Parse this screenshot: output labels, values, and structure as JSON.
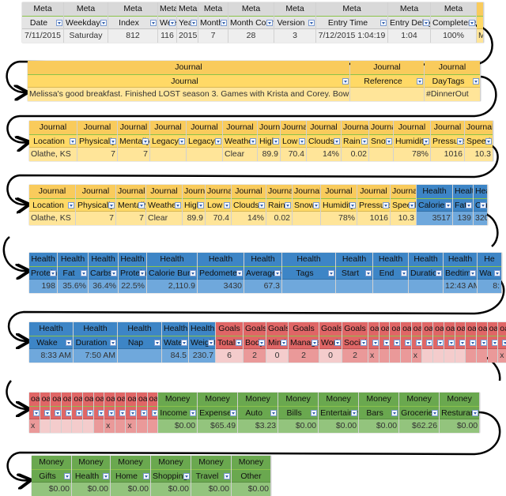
{
  "colors": {
    "meta": "#d9d9d9",
    "journal": "#ffd966",
    "health": "#3d85c6",
    "goals": "#e06666",
    "money": "#6aa84f"
  },
  "strips": [
    {
      "columns": [
        {
          "cat": "meta",
          "group": "Meta",
          "header": "Date",
          "value": "7/11/2015"
        },
        {
          "cat": "meta",
          "group": "Meta",
          "header": "Weekday",
          "value": "Saturday"
        },
        {
          "cat": "meta",
          "group": "Meta",
          "header": "Index",
          "value": "812"
        },
        {
          "cat": "meta",
          "group": "Meta",
          "header": "Week",
          "value": "116"
        },
        {
          "cat": "meta",
          "group": "Meta",
          "header": "Year",
          "value": "2015"
        },
        {
          "cat": "meta",
          "group": "Meta",
          "header": "Month",
          "value": "7"
        },
        {
          "cat": "meta",
          "group": "Meta",
          "header": "Month Count",
          "value": "28"
        },
        {
          "cat": "meta",
          "group": "Meta",
          "header": "Version",
          "value": "3"
        },
        {
          "cat": "meta",
          "group": "Meta",
          "header": "Entry Time",
          "value": "7/12/2015 1:04:19"
        },
        {
          "cat": "meta",
          "group": "Meta",
          "header": "Entry Delay",
          "value": "1:04"
        },
        {
          "cat": "meta",
          "group": "Meta",
          "header": "Completeness",
          "value": "100%"
        },
        {
          "cat": "journal",
          "group": "",
          "header": "",
          "value": "M"
        }
      ]
    },
    {
      "columns": [
        {
          "cat": "journal",
          "group": "Journal",
          "header": "Journal",
          "value": "Melissa's good breakfast. Finished LOST season 3. Games with Krista and Corey. Bowling with them a"
        },
        {
          "cat": "journal",
          "group": "Journal",
          "header": "Reference",
          "value": ""
        },
        {
          "cat": "journal",
          "group": "Journal",
          "header": "DayTags",
          "value": "#DinnerOut"
        }
      ]
    },
    {
      "columns": [
        {
          "cat": "journal",
          "group": "Journal",
          "header": "Location",
          "value": "Olathe, KS"
        },
        {
          "cat": "journal",
          "group": "Journal",
          "header": "Physically",
          "value": "7"
        },
        {
          "cat": "journal",
          "group": "Journal",
          "header": "Mentally",
          "value": "7"
        },
        {
          "cat": "journal",
          "group": "Journal",
          "header": "LegacyP",
          "value": ""
        },
        {
          "cat": "journal",
          "group": "Journal",
          "header": "LegacyM",
          "value": ""
        },
        {
          "cat": "journal",
          "group": "Journal",
          "header": "Weather",
          "value": "Clear"
        },
        {
          "cat": "journal",
          "group": "Journal",
          "header": "High",
          "value": "89.9"
        },
        {
          "cat": "journal",
          "group": "Journal",
          "header": "Low",
          "value": "70.4"
        },
        {
          "cat": "journal",
          "group": "Journal",
          "header": "Clouds",
          "value": "14%"
        },
        {
          "cat": "journal",
          "group": "Journal",
          "header": "Rain",
          "value": "0.02"
        },
        {
          "cat": "journal",
          "group": "Journal",
          "header": "Snow",
          "value": ""
        },
        {
          "cat": "journal",
          "group": "Journal",
          "header": "Humidity",
          "value": "78%"
        },
        {
          "cat": "journal",
          "group": "Journal",
          "header": "Pressure",
          "value": "1016"
        },
        {
          "cat": "journal",
          "group": "Journal",
          "header": "Speed",
          "value": "10.3"
        }
      ]
    },
    {
      "columns": [
        {
          "cat": "journal",
          "group": "Journal",
          "header": "Location",
          "value": "Olathe, KS"
        },
        {
          "cat": "journal",
          "group": "Journal",
          "header": "Physically",
          "value": "7"
        },
        {
          "cat": "journal",
          "group": "Journal",
          "header": "Mentally",
          "value": "7"
        },
        {
          "cat": "journal",
          "group": "Journal",
          "header": "Weather",
          "value": "Clear"
        },
        {
          "cat": "journal",
          "group": "Journal",
          "header": "High",
          "value": "89.9"
        },
        {
          "cat": "journal",
          "group": "Journal",
          "header": "Low",
          "value": "70.4"
        },
        {
          "cat": "journal",
          "group": "Journal",
          "header": "Clouds",
          "value": "14%"
        },
        {
          "cat": "journal",
          "group": "Journal",
          "header": "Rain",
          "value": "0.02"
        },
        {
          "cat": "journal",
          "group": "Journal",
          "header": "Snow",
          "value": ""
        },
        {
          "cat": "journal",
          "group": "Journal",
          "header": "Humidity",
          "value": "78%"
        },
        {
          "cat": "journal",
          "group": "Journal",
          "header": "Pressure",
          "value": "1016"
        },
        {
          "cat": "journal",
          "group": "Journal",
          "header": "Speed",
          "value": "10.3"
        },
        {
          "cat": "health",
          "group": "Health",
          "header": "Calories",
          "value": "3517"
        },
        {
          "cat": "health",
          "group": "Health",
          "header": "Fats",
          "value": "139"
        },
        {
          "cat": "health",
          "group": "Health",
          "header": "Carbs",
          "value": "320"
        }
      ]
    },
    {
      "columns": [
        {
          "cat": "health",
          "group": "Health",
          "header": "Protein",
          "value": "198"
        },
        {
          "cat": "health",
          "group": "Health",
          "header": "Fat",
          "value": "35.6%"
        },
        {
          "cat": "health",
          "group": "Health",
          "header": "Carbs",
          "value": "36.4%"
        },
        {
          "cat": "health",
          "group": "Health",
          "header": "Protein",
          "value": "22.5%"
        },
        {
          "cat": "health",
          "group": "Health",
          "header": "Calorie Burn",
          "value": "2,110.9"
        },
        {
          "cat": "health",
          "group": "Health",
          "header": "Pedometer",
          "value": "3430"
        },
        {
          "cat": "health",
          "group": "Health",
          "header": "Average HR",
          "value": "67.3"
        },
        {
          "cat": "health",
          "group": "Health",
          "header": "Tags",
          "value": ""
        },
        {
          "cat": "health",
          "group": "Health",
          "header": "Start",
          "value": ""
        },
        {
          "cat": "health",
          "group": "Health",
          "header": "End",
          "value": ""
        },
        {
          "cat": "health",
          "group": "Health",
          "header": "Duration",
          "value": ""
        },
        {
          "cat": "health",
          "group": "Health",
          "header": "Bedtime",
          "value": "12:43 AM"
        },
        {
          "cat": "health",
          "group": "He",
          "header": "Wa",
          "value": "8:"
        }
      ]
    },
    {
      "columns": [
        {
          "cat": "health",
          "group": "Health",
          "header": "Wake",
          "value": "8:33 AM"
        },
        {
          "cat": "health",
          "group": "Health",
          "header": "Duration",
          "value": "7:50 AM"
        },
        {
          "cat": "health",
          "group": "Health",
          "header": "Nap",
          "value": ""
        },
        {
          "cat": "health",
          "group": "Health",
          "header": "Water",
          "value": "84.5"
        },
        {
          "cat": "health",
          "group": "Health",
          "header": "Weight",
          "value": "230.7"
        },
        {
          "cat": "goals",
          "group": "Goals",
          "header": "Total",
          "value": "6"
        },
        {
          "cat": "goals",
          "group": "Goals",
          "header": "Body",
          "value": "2"
        },
        {
          "cat": "goals",
          "group": "Goals",
          "header": "Mind",
          "value": "0"
        },
        {
          "cat": "goals",
          "group": "Goals",
          "header": "Manage",
          "value": "2"
        },
        {
          "cat": "goals",
          "group": "Goals",
          "header": "Work",
          "value": "0"
        },
        {
          "cat": "goals",
          "group": "Goals",
          "header": "Social",
          "value": "2"
        },
        {
          "cat": "goals",
          "group": "oa",
          "header": "",
          "value": "x"
        },
        {
          "cat": "goals",
          "group": "oa",
          "header": "",
          "value": ""
        },
        {
          "cat": "goals",
          "group": "oa",
          "header": "",
          "value": ""
        },
        {
          "cat": "goals",
          "group": "oa",
          "header": "",
          "value": ""
        },
        {
          "cat": "goals",
          "group": "oa",
          "header": "",
          "value": "x"
        },
        {
          "cat": "goals",
          "group": "oa",
          "header": "",
          "value": ""
        },
        {
          "cat": "goals",
          "group": "oa",
          "header": "",
          "value": ""
        },
        {
          "cat": "goals",
          "group": "oa",
          "header": "",
          "value": ""
        },
        {
          "cat": "goals",
          "group": "oa",
          "header": "",
          "value": ""
        },
        {
          "cat": "goals",
          "group": "oa",
          "header": "",
          "value": ""
        },
        {
          "cat": "goals",
          "group": "oa",
          "header": "",
          "value": ""
        },
        {
          "cat": "goals",
          "group": "oa",
          "header": "",
          "value": ""
        },
        {
          "cat": "goals",
          "group": "oa",
          "header": "",
          "value": "x"
        }
      ]
    },
    {
      "columns": [
        {
          "cat": "goals",
          "group": "oa",
          "header": "",
          "value": "x"
        },
        {
          "cat": "goals",
          "group": "oa",
          "header": "",
          "value": ""
        },
        {
          "cat": "goals",
          "group": "oa",
          "header": "",
          "value": ""
        },
        {
          "cat": "goals",
          "group": "oa",
          "header": "",
          "value": ""
        },
        {
          "cat": "goals",
          "group": "oa",
          "header": "",
          "value": ""
        },
        {
          "cat": "goals",
          "group": "oa",
          "header": "",
          "value": ""
        },
        {
          "cat": "goals",
          "group": "oa",
          "header": "",
          "value": ""
        },
        {
          "cat": "goals",
          "group": "oa",
          "header": "",
          "value": "x"
        },
        {
          "cat": "goals",
          "group": "oa",
          "header": "",
          "value": ""
        },
        {
          "cat": "goals",
          "group": "oa",
          "header": "",
          "value": "x"
        },
        {
          "cat": "goals",
          "group": "oa",
          "header": "",
          "value": ""
        },
        {
          "cat": "goals",
          "group": "oa",
          "header": "",
          "value": ""
        },
        {
          "cat": "money",
          "group": "Money",
          "header": "Income",
          "value": "$0.00"
        },
        {
          "cat": "money",
          "group": "Money",
          "header": "Expense",
          "value": "$65.49"
        },
        {
          "cat": "money",
          "group": "Money",
          "header": "Auto",
          "value": "$3.23"
        },
        {
          "cat": "money",
          "group": "Money",
          "header": "Bills",
          "value": "$0.00"
        },
        {
          "cat": "money",
          "group": "Money",
          "header": "Entertainment",
          "value": "$0.00"
        },
        {
          "cat": "money",
          "group": "Money",
          "header": "Bars",
          "value": "$0.00"
        },
        {
          "cat": "money",
          "group": "Money",
          "header": "Groceries",
          "value": "$62.26"
        },
        {
          "cat": "money",
          "group": "Money",
          "header": "Resturants",
          "value": "$0.00"
        }
      ]
    },
    {
      "columns": [
        {
          "cat": "money",
          "group": "Money",
          "header": "Gifts",
          "value": "$0.00"
        },
        {
          "cat": "money",
          "group": "Money",
          "header": "Health",
          "value": "$0.00"
        },
        {
          "cat": "money",
          "group": "Money",
          "header": "Home",
          "value": "$0.00"
        },
        {
          "cat": "money",
          "group": "Money",
          "header": "Shopping",
          "value": "$0.00"
        },
        {
          "cat": "money",
          "group": "Money",
          "header": "Travel",
          "value": "$0.00"
        },
        {
          "cat": "money",
          "group": "Money",
          "header": "Other",
          "value": "$0.00"
        }
      ]
    }
  ]
}
